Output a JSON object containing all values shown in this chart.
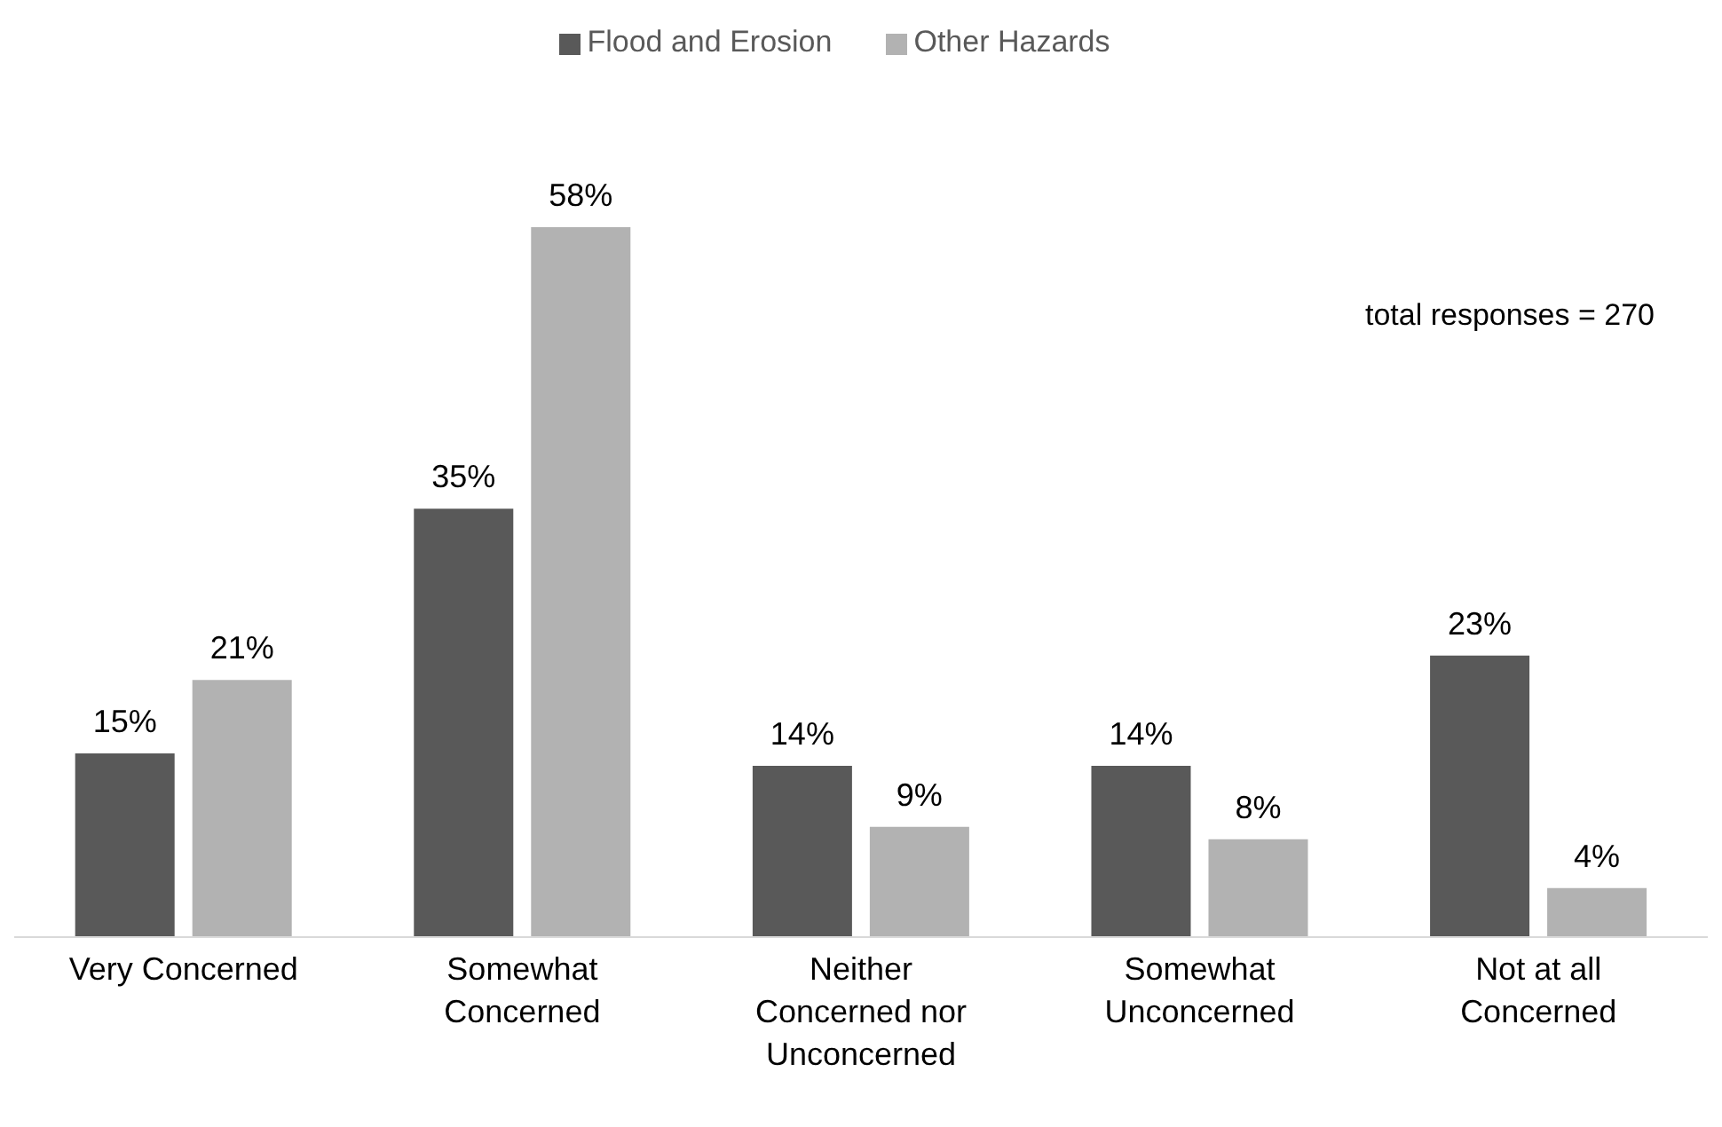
{
  "chart_data": {
    "type": "bar",
    "categories": [
      "Very Concerned",
      "Somewhat Concerned",
      "Neither Concerned nor Unconcerned",
      "Somewhat Unconcerned",
      "Not at all Concerned"
    ],
    "series": [
      {
        "name": "Flood and Erosion",
        "color": "#595959",
        "values": [
          15,
          35,
          14,
          14,
          23
        ],
        "value_labels": [
          "15%",
          "35%",
          "14%",
          "14%",
          "23%"
        ]
      },
      {
        "name": "Other Hazards",
        "color": "#b2b2b2",
        "values": [
          21,
          58,
          9,
          8,
          4
        ],
        "value_labels": [
          "21%",
          "58%",
          "9%",
          "8%",
          "4%"
        ]
      }
    ],
    "annotations": [
      "total responses = 270"
    ],
    "legend": "top",
    "grid": false
  }
}
